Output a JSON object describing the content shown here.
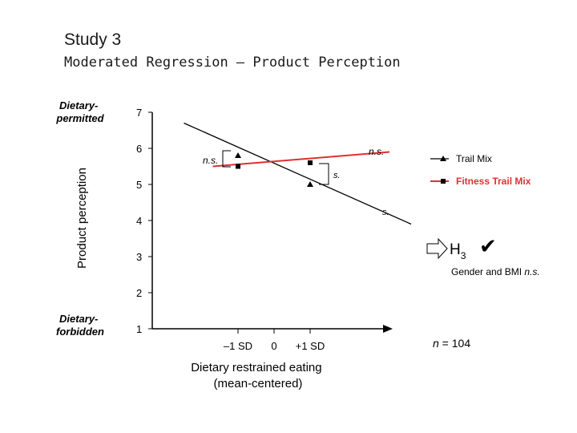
{
  "slide": {
    "title": "Study 3",
    "subtitle": "Moderated Regression – Product Perception"
  },
  "side_labels": {
    "top": [
      "Dietary-",
      "permitted"
    ],
    "bottom": [
      "Dietary-",
      "forbidden"
    ]
  },
  "annotations": {
    "ns_left": "n.s.",
    "ns_right": "n.s.",
    "s_mid": "s.",
    "s_right": "s.",
    "hypothesis_main": "H",
    "hypothesis_sub": "3",
    "gender_bmi": "Gender and BMI ",
    "gender_bmi_ns": "n.s.",
    "n_label": "n",
    "n_value": " = 104"
  },
  "icons": {
    "arrow": "hollow-right-arrow-icon",
    "check": "checkmark-icon"
  },
  "colors": {
    "trail_mix": "#000000",
    "fitness_trail_mix": "#e03030",
    "axis": "#000000"
  },
  "chart_data": {
    "type": "line",
    "ylabel": "Product perception",
    "xlabel": [
      "Dietary restrained eating",
      "(mean-centered)"
    ],
    "y_ticks": [
      1,
      2,
      3,
      4,
      5,
      6,
      7
    ],
    "x_tick_labels": [
      "–1 SD",
      "0",
      "+1 SD"
    ],
    "ylim": [
      1,
      7
    ],
    "x": [
      -1,
      1
    ],
    "legend_position": "right",
    "series": [
      {
        "name": "Trail Mix",
        "marker": "triangle",
        "values": [
          5.8,
          5.0
        ],
        "line_extent": [
          -2.5,
          3.8
        ],
        "line_values": [
          6.7,
          3.9
        ]
      },
      {
        "name": "Fitness Trail Mix",
        "marker": "square",
        "values": [
          5.5,
          5.6
        ],
        "line_extent": [
          -1.7,
          3.2
        ],
        "line_values": [
          5.5,
          5.9
        ]
      }
    ]
  }
}
